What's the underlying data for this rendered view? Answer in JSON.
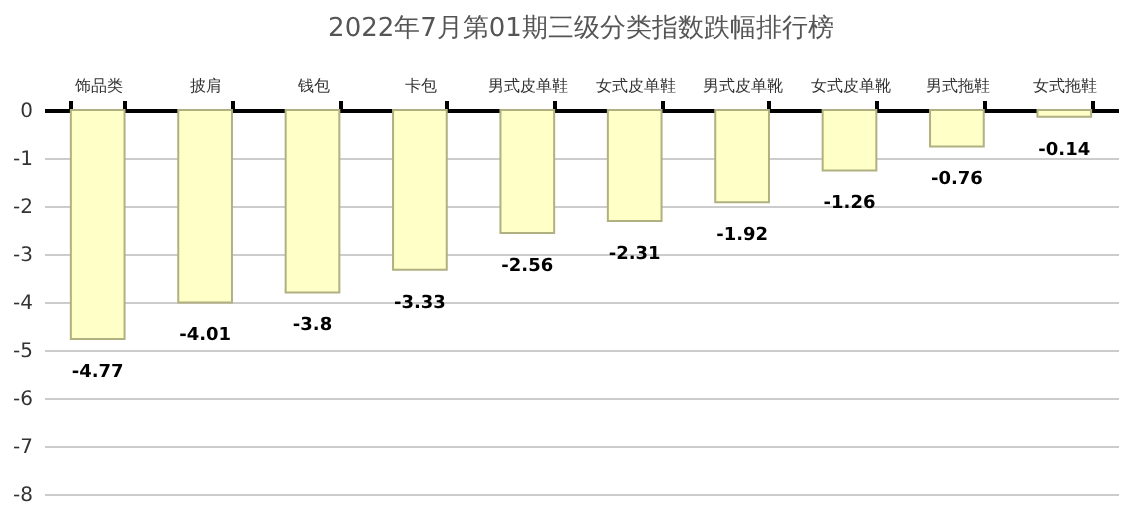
{
  "chart_data": {
    "type": "bar",
    "title": "2022年7月第01期三级分类指数跌幅排行榜",
    "categories": [
      "饰品类",
      "披肩",
      "钱包",
      "卡包",
      "男式皮单鞋",
      "女式皮单鞋",
      "男式皮单靴",
      "女式皮单靴",
      "男式拖鞋",
      "女式拖鞋"
    ],
    "values": [
      -4.77,
      -4.01,
      -3.8,
      -3.33,
      -2.56,
      -2.31,
      -1.92,
      -1.26,
      -0.76,
      -0.14
    ],
    "color": "#ffffc8",
    "ylim": [
      -8,
      0
    ],
    "yticks": [
      0,
      -1,
      -2,
      -3,
      -4,
      -5,
      -6,
      -7,
      -8
    ],
    "grid": "y",
    "data_labels": true
  }
}
